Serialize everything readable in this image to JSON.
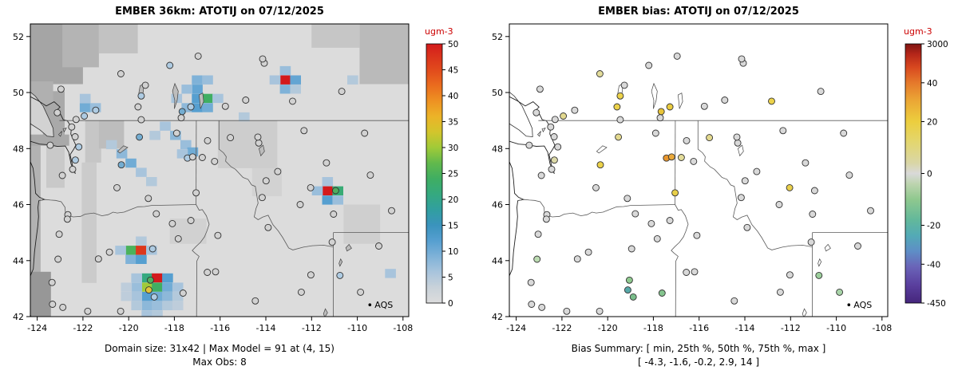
{
  "page_background": "#ffffff",
  "stations": [
    [
      -122.49,
      48.77,
      "#d2d2d2",
      "#d9d9d9"
    ],
    [
      -122.34,
      48.42,
      "#d2d2d2",
      "#d9d9d9"
    ],
    [
      -123.43,
      48.12,
      "#d2d2d2",
      "#d9d9d9"
    ],
    [
      -122.18,
      48.06,
      "#aecbe2",
      "#d9d9d9"
    ],
    [
      -122.33,
      47.59,
      "#aecbe2",
      "#dcd9a8"
    ],
    [
      -122.45,
      47.26,
      "#d2d2d2",
      "#d9d9d9"
    ],
    [
      -122.9,
      47.04,
      "#d2d2d2",
      "#d9d9d9"
    ],
    [
      -120.51,
      46.6,
      "#d2d2d2",
      "#d9d9d9"
    ],
    [
      -120.32,
      47.42,
      "#74add1",
      "#ecd24a"
    ],
    [
      -119.53,
      48.41,
      "#74add1",
      "#e3d98f"
    ],
    [
      -117.43,
      47.66,
      "#aecbe2",
      "#e8962e"
    ],
    [
      -117.2,
      47.7,
      "#d2d2d2",
      "#eaa93a"
    ],
    [
      -117.9,
      48.55,
      "#d2d2d2",
      "#d9d9d9"
    ],
    [
      -117.05,
      46.42,
      "#d2d2d2",
      "#e8cf49"
    ],
    [
      -119.14,
      46.22,
      "#d2d2d2",
      "#d9d9d9"
    ],
    [
      -122.66,
      45.64,
      "#d2d2d2",
      "#d9d9d9"
    ],
    [
      -122.68,
      45.48,
      "#d2d2d2",
      "#d9d9d9"
    ],
    [
      -123.04,
      44.94,
      "#d2d2d2",
      "#d9d9d9"
    ],
    [
      -123.09,
      44.05,
      "#d2d2d2",
      "#bcdcb2"
    ],
    [
      -123.35,
      43.22,
      "#d2d2d2",
      "#d9d9d9"
    ],
    [
      -123.33,
      42.44,
      "#d2d2d2",
      "#d9d9d9"
    ],
    [
      -122.88,
      42.33,
      "#d2d2d2",
      "#d9d9d9"
    ],
    [
      -121.79,
      42.19,
      "#d2d2d2",
      "#d9d9d9"
    ],
    [
      -121.32,
      44.06,
      "#d2d2d2",
      "#d9d9d9"
    ],
    [
      -120.84,
      44.3,
      "#d2d2d2",
      "#d9d9d9"
    ],
    [
      -118.95,
      44.42,
      "#aecbe2",
      "#d9d9d9"
    ],
    [
      -119.05,
      43.3,
      "#4fae5f",
      "#8fc98f"
    ],
    [
      -119.12,
      42.95,
      "#e0c23a",
      "#57a8a8"
    ],
    [
      -118.88,
      42.7,
      "#aecbe2",
      "#79bd8a"
    ],
    [
      -117.62,
      42.84,
      "#d2d2d2",
      "#84c48e"
    ],
    [
      -120.35,
      42.19,
      "#d2d2d2",
      "#d9d9d9"
    ],
    [
      -118.09,
      45.32,
      "#d2d2d2",
      "#d9d9d9"
    ],
    [
      -117.83,
      44.78,
      "#d2d2d2",
      "#d9d9d9"
    ],
    [
      -118.79,
      45.67,
      "#d2d2d2",
      "#d9d9d9"
    ],
    [
      -117.28,
      45.43,
      "#d2d2d2",
      "#d9d9d9"
    ],
    [
      -116.2,
      43.6,
      "#d2d2d2",
      "#d9d9d9"
    ],
    [
      -116.56,
      43.58,
      "#d2d2d2",
      "#d9d9d9"
    ],
    [
      -114.46,
      42.56,
      "#d2d2d2",
      "#d9d9d9"
    ],
    [
      -112.45,
      42.87,
      "#d2d2d2",
      "#d9d9d9"
    ],
    [
      -112.03,
      43.49,
      "#d2d2d2",
      "#d9d9d9"
    ],
    [
      -113.9,
      45.18,
      "#d2d2d2",
      "#d9d9d9"
    ],
    [
      -116.1,
      44.9,
      "#d2d2d2",
      "#d9d9d9"
    ],
    [
      -116.78,
      47.68,
      "#d2d2d2",
      "#e3dc9a"
    ],
    [
      -116.55,
      48.28,
      "#d2d2d2",
      "#d9d9d9"
    ],
    [
      -116.24,
      47.54,
      "#d2d2d2",
      "#d9d9d9"
    ],
    [
      -113.99,
      46.85,
      "#d2d2d2",
      "#d9d9d9"
    ],
    [
      -114.16,
      46.25,
      "#d2d2d2",
      "#d9d9d9"
    ],
    [
      -112.5,
      46.0,
      "#d2d2d2",
      "#d9d9d9"
    ],
    [
      -112.04,
      46.6,
      "#d2d2d2",
      "#ead04c"
    ],
    [
      -110.95,
      46.5,
      "#4fae5f",
      "#d9d9d9"
    ],
    [
      -111.35,
      47.49,
      "#d2d2d2",
      "#d9d9d9"
    ],
    [
      -111.04,
      45.66,
      "#d2d2d2",
      "#d9d9d9"
    ],
    [
      -111.1,
      44.66,
      "#d2d2d2",
      "#d9d9d9"
    ],
    [
      -109.43,
      47.05,
      "#d2d2d2",
      "#d9d9d9"
    ],
    [
      -109.68,
      48.55,
      "#d2d2d2",
      "#d9d9d9"
    ],
    [
      -108.5,
      45.78,
      "#d2d2d2",
      "#d9d9d9"
    ],
    [
      -114.31,
      48.2,
      "#d2d2d2",
      "#d9d9d9"
    ],
    [
      -114.35,
      48.41,
      "#d2d2d2",
      "#d9d9d9"
    ],
    [
      -115.55,
      48.39,
      "#d2d2d2",
      "#e3d98f"
    ],
    [
      -113.48,
      47.18,
      "#d2d2d2",
      "#d9d9d9"
    ],
    [
      -112.33,
      48.64,
      "#d2d2d2",
      "#d9d9d9"
    ],
    [
      -110.76,
      43.47,
      "#aecbe2",
      "#9ccf9c"
    ],
    [
      -109.86,
      42.87,
      "#d2d2d2",
      "#a8d4a8"
    ],
    [
      -109.06,
      44.52,
      "#d2d2d2",
      "#d9d9d9"
    ],
    [
      -123.12,
      49.28,
      "#d2d2d2",
      "#d9d9d9"
    ],
    [
      -122.3,
      49.04,
      "#d2d2d2",
      "#d9d9d9"
    ],
    [
      -121.94,
      49.16,
      "#aecbe2",
      "#e3d98f"
    ],
    [
      -121.44,
      49.37,
      "#aecbe2",
      "#d9d9d9"
    ],
    [
      -122.96,
      50.12,
      "#d2d2d2",
      "#d9d9d9"
    ],
    [
      -120.34,
      50.67,
      "#d2d2d2",
      "#e3dc9a"
    ],
    [
      -119.27,
      50.26,
      "#d2d2d2",
      "#d9d9d9"
    ],
    [
      -119.45,
      49.88,
      "#aecbe2",
      "#ecd24a"
    ],
    [
      -119.59,
      49.49,
      "#d2d2d2",
      "#ecd24a"
    ],
    [
      -119.45,
      49.03,
      "#d2d2d2",
      "#d9d9d9"
    ],
    [
      -117.66,
      49.32,
      "#74add1",
      "#e8c43a"
    ],
    [
      -117.28,
      49.49,
      "#aecbe2",
      "#eacc3f"
    ],
    [
      -117.7,
      49.1,
      "#d2d2d2",
      "#d9d9d9"
    ],
    [
      -115.77,
      49.51,
      "#d2d2d2",
      "#d9d9d9"
    ],
    [
      -114.88,
      49.73,
      "#d2d2d2",
      "#d9d9d9"
    ],
    [
      -116.96,
      51.3,
      "#d2d2d2",
      "#d9d9d9"
    ],
    [
      -118.2,
      50.97,
      "#aecbe2",
      "#d9d9d9"
    ],
    [
      -114.07,
      51.05,
      "#d2d2d2",
      "#d9d9d9"
    ],
    [
      -114.14,
      51.2,
      "#d2d2d2",
      "#d9d9d9"
    ],
    [
      -112.83,
      49.69,
      "#d2d2d2",
      "#ecd24a"
    ],
    [
      -110.68,
      50.04,
      "#d2d2d2",
      "#d9d9d9"
    ]
  ],
  "chart_data": [
    {
      "type": "heatmap",
      "title": "EMBER 36km: ATOTIJ on 07/12/2025",
      "xlim": [
        -124.3,
        -107.75
      ],
      "ylim": [
        42.0,
        52.45
      ],
      "x_ticks": [
        -124,
        -122,
        -120,
        -118,
        -116,
        -114,
        -112,
        -110,
        -108
      ],
      "y_ticks": [
        42,
        44,
        46,
        48,
        50,
        52
      ],
      "legend_label": "AQS",
      "caption_line1": "Domain size: 31x42 | Max Model = 91 at (4, 15)",
      "caption_line2": "Max Obs: 8",
      "colorbar": {
        "title": "ugm-3",
        "units_color": "#cc0000",
        "vmin": 0,
        "vmax": 50,
        "ticks": [
          0,
          5,
          10,
          15,
          20,
          25,
          30,
          35,
          40,
          45,
          50
        ],
        "stops": [
          {
            "v": 0,
            "c": "#dcdcdc"
          },
          {
            "v": 3,
            "c": "#c9d2da"
          },
          {
            "v": 6,
            "c": "#a8c4dc"
          },
          {
            "v": 9,
            "c": "#7fb2d8"
          },
          {
            "v": 12,
            "c": "#569fd0"
          },
          {
            "v": 15,
            "c": "#3a93bd"
          },
          {
            "v": 18,
            "c": "#319fa0"
          },
          {
            "v": 21,
            "c": "#35a97f"
          },
          {
            "v": 24,
            "c": "#3fae62"
          },
          {
            "v": 27,
            "c": "#62b94c"
          },
          {
            "v": 30,
            "c": "#a0ca38"
          },
          {
            "v": 33,
            "c": "#d3c52c"
          },
          {
            "v": 36,
            "c": "#ecb328"
          },
          {
            "v": 39,
            "c": "#ee9122"
          },
          {
            "v": 42,
            "c": "#ea6c1e"
          },
          {
            "v": 45,
            "c": "#e14a1c"
          },
          {
            "v": 48,
            "c": "#d92f1c"
          },
          {
            "v": 50,
            "c": "#d31a1c"
          }
        ]
      },
      "cell_size_deg": [
        0.474,
        0.325
      ],
      "cells": [
        [
          -117.0,
          50.45,
          9
        ],
        [
          -116.55,
          50.45,
          7
        ],
        [
          -117.0,
          50.12,
          11
        ],
        [
          -117.45,
          50.12,
          7
        ],
        [
          -116.55,
          49.79,
          24
        ],
        [
          -117.0,
          49.79,
          12
        ],
        [
          -117.45,
          49.46,
          8
        ],
        [
          -117.0,
          49.46,
          12
        ],
        [
          -116.55,
          49.46,
          10
        ],
        [
          -117.9,
          49.79,
          6
        ],
        [
          -116.1,
          49.79,
          6
        ],
        [
          -121.9,
          49.46,
          10
        ],
        [
          -121.45,
          49.46,
          7
        ],
        [
          -121.9,
          49.79,
          6
        ],
        [
          -113.15,
          50.45,
          50
        ],
        [
          -112.7,
          50.45,
          11
        ],
        [
          -113.15,
          50.12,
          9
        ],
        [
          -113.6,
          50.45,
          6
        ],
        [
          -112.7,
          50.12,
          5
        ],
        [
          -113.15,
          50.78,
          7
        ],
        [
          -118.4,
          48.8,
          6
        ],
        [
          -117.95,
          48.47,
          8
        ],
        [
          -117.5,
          48.14,
          7
        ],
        [
          -117.2,
          47.88,
          10
        ],
        [
          -117.65,
          47.81,
          6
        ],
        [
          -118.85,
          48.47,
          5
        ],
        [
          -120.3,
          47.81,
          8
        ],
        [
          -119.9,
          47.48,
          10
        ],
        [
          -119.45,
          47.15,
          6
        ],
        [
          -120.75,
          48.14,
          5
        ],
        [
          -119.0,
          46.82,
          5
        ],
        [
          -111.3,
          46.49,
          50
        ],
        [
          -110.85,
          46.49,
          22
        ],
        [
          -111.3,
          46.16,
          12
        ],
        [
          -111.75,
          46.49,
          7
        ],
        [
          -110.85,
          46.16,
          7
        ],
        [
          -111.3,
          46.82,
          6
        ],
        [
          -119.9,
          44.37,
          25
        ],
        [
          -119.45,
          44.37,
          47
        ],
        [
          -119.9,
          44.04,
          9
        ],
        [
          -119.45,
          44.04,
          12
        ],
        [
          -120.35,
          44.37,
          6
        ],
        [
          -119.0,
          44.37,
          6
        ],
        [
          -119.45,
          44.7,
          5
        ],
        [
          -119.2,
          43.38,
          21
        ],
        [
          -118.75,
          43.38,
          50
        ],
        [
          -118.3,
          43.38,
          12
        ],
        [
          -119.2,
          43.05,
          30
        ],
        [
          -118.75,
          43.05,
          24
        ],
        [
          -118.3,
          43.05,
          10
        ],
        [
          -119.65,
          43.05,
          7
        ],
        [
          -119.2,
          42.72,
          12
        ],
        [
          -118.75,
          42.72,
          10
        ],
        [
          -118.3,
          42.72,
          8
        ],
        [
          -119.65,
          42.72,
          6
        ],
        [
          -119.2,
          42.39,
          8
        ],
        [
          -118.75,
          42.39,
          7
        ],
        [
          -118.3,
          42.39,
          5
        ],
        [
          -119.65,
          43.38,
          6
        ],
        [
          -117.85,
          43.05,
          6
        ],
        [
          -117.85,
          42.72,
          5
        ],
        [
          -119.2,
          42.06,
          6
        ],
        [
          -118.75,
          42.06,
          5
        ],
        [
          -120.1,
          42.72,
          4
        ],
        [
          -120.1,
          43.05,
          4
        ],
        [
          -117.85,
          42.39,
          4
        ],
        [
          -119.65,
          42.39,
          5
        ],
        [
          -108.55,
          43.54,
          6
        ],
        [
          -110.2,
          50.45,
          5
        ],
        [
          -114.95,
          49.13,
          5
        ]
      ],
      "shade_rects": [
        [
          -124.3,
          42.0,
          0.45,
          6.3,
          "#b2b2b2"
        ],
        [
          -124.3,
          48.1,
          1.7,
          0.4,
          "#a9a9a9"
        ],
        [
          -123.75,
          48.45,
          0.95,
          1.6,
          "#a9a9a9"
        ],
        [
          -124.3,
          50.3,
          2.3,
          2.15,
          "#a5a5a5"
        ],
        [
          -122.9,
          50.9,
          1.6,
          1.55,
          "#b4b4b4"
        ],
        [
          -124.3,
          49.6,
          1.0,
          0.8,
          "#b0b0b0"
        ],
        [
          -121.3,
          51.4,
          1.7,
          1.05,
          "#c2c2c2"
        ],
        [
          -124.3,
          42.0,
          0.9,
          1.6,
          "#979797"
        ],
        [
          -122.05,
          43.2,
          0.65,
          4.3,
          "#cbcbcb"
        ],
        [
          -121.9,
          47.5,
          0.7,
          1.5,
          "#c6c6c6"
        ],
        [
          -121.3,
          48.0,
          1.1,
          1.0,
          "#bdbdbd"
        ],
        [
          -116.1,
          47.3,
          2.6,
          1.7,
          "#cdcdcd"
        ],
        [
          -114.6,
          46.3,
          1.3,
          1.0,
          "#d2d2d2"
        ],
        [
          -108.6,
          50.9,
          0.85,
          1.55,
          "#a8a8a8"
        ],
        [
          -109.9,
          50.3,
          2.15,
          2.15,
          "#bababa"
        ],
        [
          -112.0,
          51.6,
          2.1,
          0.85,
          "#c6c6c6"
        ],
        [
          -123.6,
          46.6,
          0.8,
          1.5,
          "#c9c9c9"
        ],
        [
          -110.6,
          44.6,
          1.6,
          1.4,
          "#cfcfcf"
        ],
        [
          -118.2,
          44.6,
          1.6,
          0.9,
          "#d1d1d1"
        ]
      ]
    },
    {
      "type": "scatter",
      "title": "EMBER bias: ATOTIJ on 07/12/2025",
      "xlim": [
        -124.3,
        -107.75
      ],
      "ylim": [
        42.0,
        52.45
      ],
      "x_ticks": [
        -124,
        -122,
        -120,
        -118,
        -116,
        -114,
        -112,
        -110,
        -108
      ],
      "y_ticks": [
        42,
        44,
        46,
        48,
        50,
        52
      ],
      "legend_label": "AQS",
      "caption_line1": "Bias Summary: [ min, 25th %, 50th %, 75th %, max ]",
      "caption_line2": "[ -4.3,  -1.6,  -0.2,  2.9,  14 ]",
      "colorbar": {
        "title": "ugm-3",
        "units_color": "#cc0000",
        "tick_labels": [
          "3000",
          "40",
          "20",
          "0",
          "-20",
          "-40",
          "-450"
        ],
        "tick_pos": [
          1,
          0.85,
          0.7,
          0.5,
          0.3,
          0.15,
          0
        ],
        "stops": [
          {
            "p": 0,
            "c": "#45267c"
          },
          {
            "p": 0.07,
            "c": "#5a3f9e"
          },
          {
            "p": 0.14,
            "c": "#6a64b8"
          },
          {
            "p": 0.2,
            "c": "#5e8ec6"
          },
          {
            "p": 0.26,
            "c": "#53aab6"
          },
          {
            "p": 0.32,
            "c": "#62b89b"
          },
          {
            "p": 0.4,
            "c": "#8fc88e"
          },
          {
            "p": 0.46,
            "c": "#bdd4af"
          },
          {
            "p": 0.5,
            "c": "#d9d9d9"
          },
          {
            "p": 0.54,
            "c": "#d9d6a6"
          },
          {
            "p": 0.62,
            "c": "#e3d670"
          },
          {
            "p": 0.7,
            "c": "#ecce3e"
          },
          {
            "p": 0.78,
            "c": "#eba735"
          },
          {
            "p": 0.85,
            "c": "#e5792b"
          },
          {
            "p": 0.91,
            "c": "#d8481f"
          },
          {
            "p": 0.96,
            "c": "#b52619"
          },
          {
            "p": 1,
            "c": "#7f1412"
          }
        ]
      }
    }
  ]
}
